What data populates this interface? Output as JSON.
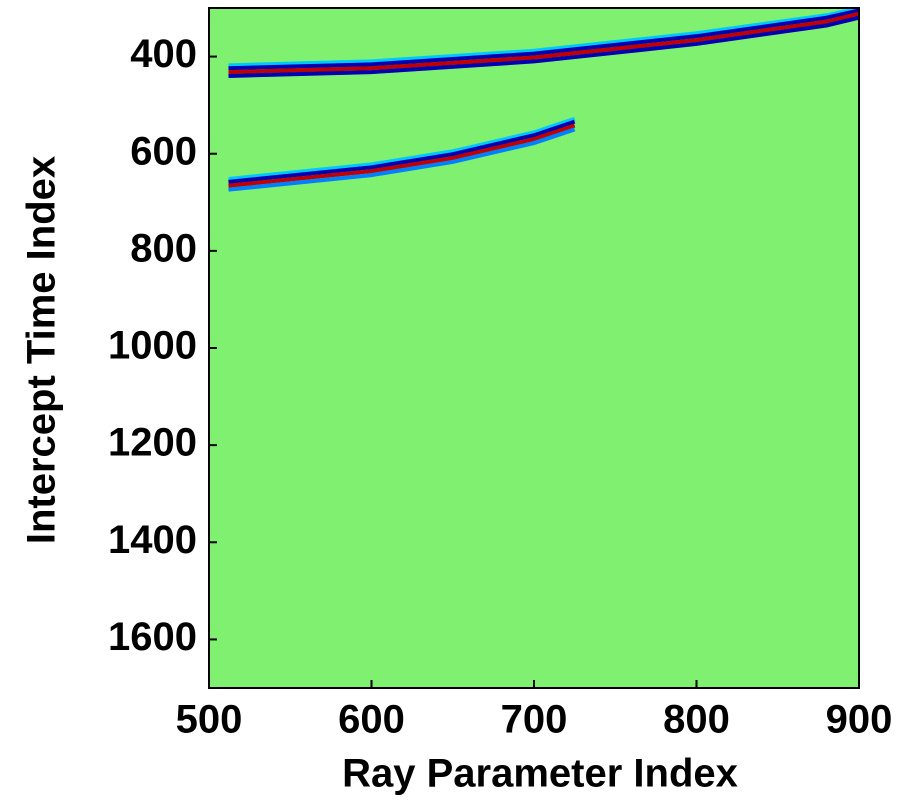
{
  "chart_data": {
    "type": "heatmap",
    "xlabel": "Ray Parameter Index",
    "ylabel": "Intercept Time Index",
    "xlim": [
      500,
      900
    ],
    "ylim": [
      300,
      1700
    ],
    "y_reversed": true,
    "xticks": [
      500,
      600,
      700,
      800,
      900
    ],
    "yticks": [
      400,
      600,
      800,
      1000,
      1200,
      1400,
      1600
    ],
    "background_color": "#80f070",
    "series": [
      {
        "color": "#00c8ff",
        "x": [
          512,
          600,
          700,
          800,
          880,
          900
        ],
        "values": [
          418,
          410,
          388,
          352,
          315,
          300
        ]
      },
      {
        "color": "#0000b0",
        "x": [
          512,
          600,
          700,
          800,
          880,
          900
        ],
        "values": [
          424,
          416,
          394,
          358,
          320,
          305
        ]
      },
      {
        "color": "#c00000",
        "x": [
          512,
          600,
          700,
          800,
          880,
          900
        ],
        "values": [
          432,
          424,
          402,
          366,
          328,
          312
        ]
      },
      {
        "color": "#0000b0",
        "x": [
          512,
          600,
          700,
          800,
          880,
          900
        ],
        "values": [
          440,
          432,
          410,
          374,
          336,
          320
        ]
      },
      {
        "color": "#00c8ff",
        "x": [
          512,
          600,
          650,
          700,
          725
        ],
        "values": [
          652,
          622,
          595,
          556,
          528
        ]
      },
      {
        "color": "#0000b0",
        "x": [
          512,
          600,
          650,
          700,
          725
        ],
        "values": [
          658,
          628,
          601,
          562,
          534
        ]
      },
      {
        "color": "#c00000",
        "x": [
          512,
          600,
          650,
          700,
          725
        ],
        "values": [
          666,
          636,
          609,
          570,
          542
        ]
      },
      {
        "color": "#0080ff",
        "x": [
          512,
          600,
          650,
          700,
          725
        ],
        "values": [
          674,
          644,
          617,
          578,
          550
        ]
      }
    ]
  }
}
